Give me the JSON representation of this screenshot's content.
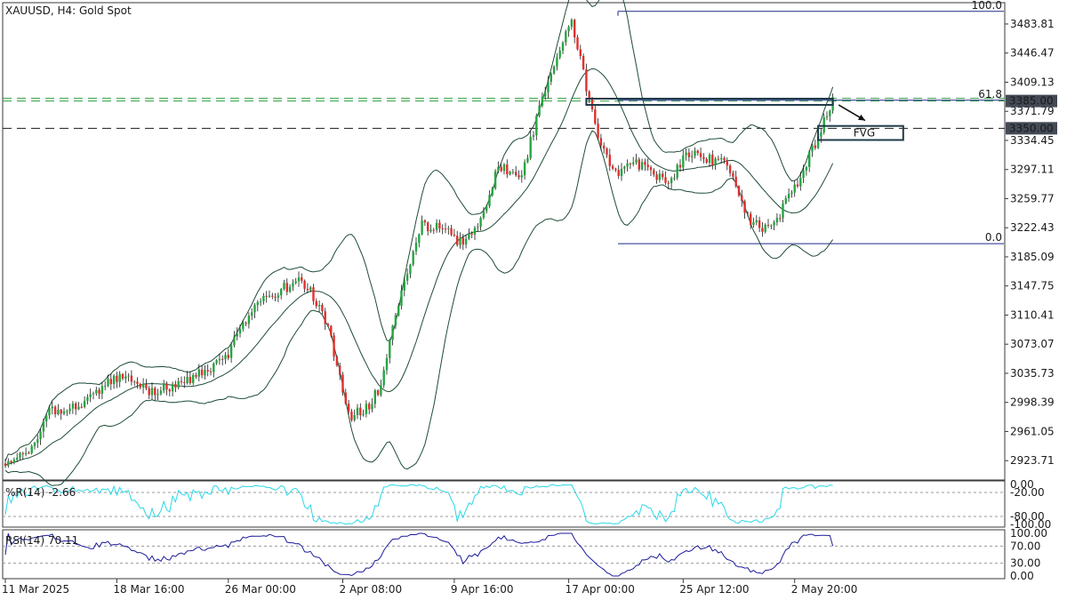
{
  "header": {
    "symbol_label": "XAUUSD, H4:  Gold Spot"
  },
  "colors": {
    "bull": "#26a541",
    "bear": "#e0302e",
    "wick": "#1a1a1a",
    "band": "#1f4d36",
    "fib": "#1f2a8a",
    "williams": "#28d8e8",
    "rsi": "#1b1b9a",
    "level_dash": "#1a1a1a",
    "green_dash": "#2e9e3e",
    "price_box_bg": "#444a55",
    "price_box_text": "#ffffff"
  },
  "chart_data": [
    {
      "type": "candlestick",
      "panel": "main",
      "ylim": [
        2900,
        3510
      ],
      "y_ticks": [
        3483.81,
        3446.47,
        3409.13,
        3371.79,
        3334.45,
        3297.11,
        3259.77,
        3222.43,
        3185.09,
        3147.75,
        3110.41,
        3073.07,
        3035.73,
        2998.39,
        2961.05,
        2923.71
      ],
      "x_labels": [
        "11 Mar 2025",
        "18 Mar 16:00",
        "26 Mar 00:00",
        "2 Apr 08:00",
        "9 Apr 16:00",
        "17 Apr 00:00",
        "25 Apr 12:00",
        "2 May 20:00"
      ],
      "price_anchors": [
        [
          0,
          2920
        ],
        [
          8,
          2935
        ],
        [
          15,
          2985
        ],
        [
          25,
          2995
        ],
        [
          40,
          3035
        ],
        [
          50,
          3012
        ],
        [
          62,
          3025
        ],
        [
          75,
          3055
        ],
        [
          85,
          3125
        ],
        [
          95,
          3145
        ],
        [
          100,
          3155
        ],
        [
          104,
          3140
        ],
        [
          110,
          3095
        ],
        [
          117,
          2980
        ],
        [
          123,
          2990
        ],
        [
          128,
          3020
        ],
        [
          133,
          3110
        ],
        [
          142,
          3225
        ],
        [
          150,
          3220
        ],
        [
          156,
          3200
        ],
        [
          162,
          3230
        ],
        [
          168,
          3300
        ],
        [
          176,
          3290
        ],
        [
          182,
          3375
        ],
        [
          188,
          3440
        ],
        [
          193,
          3490
        ],
        [
          197,
          3420
        ],
        [
          202,
          3340
        ],
        [
          208,
          3290
        ],
        [
          214,
          3310
        ],
        [
          220,
          3290
        ],
        [
          226,
          3280
        ],
        [
          232,
          3320
        ],
        [
          240,
          3310
        ],
        [
          246,
          3305
        ],
        [
          252,
          3240
        ],
        [
          258,
          3218
        ],
        [
          264,
          3240
        ],
        [
          270,
          3280
        ],
        [
          276,
          3330
        ],
        [
          282,
          3385
        ]
      ],
      "levels": [
        {
          "value": 3385.0,
          "label": "3385.00",
          "style": "dash-green"
        },
        {
          "value": 3350.0,
          "label": "3350.00",
          "style": "dash-dark"
        }
      ],
      "fibonacci": [
        {
          "value": 3500,
          "label": "100.0"
        },
        {
          "value": 3386,
          "label": "61.8"
        },
        {
          "value": 3202,
          "label": "0.0"
        }
      ],
      "annotations": [
        {
          "type": "box",
          "label": "",
          "from_bar": 198,
          "to_bar": 282,
          "y_top": 3388,
          "y_bottom": 3380
        },
        {
          "type": "box",
          "label": "FVG",
          "from_bar": 277,
          "to_bar": 306,
          "y_top": 3353,
          "y_bottom": 3335
        },
        {
          "type": "arrow",
          "from_bar": 284,
          "from_y": 3380,
          "to_bar": 293,
          "to_y": 3360
        }
      ]
    },
    {
      "type": "line",
      "panel": "williams",
      "label": "%R(14) -2.66",
      "ylim": [
        -100,
        0
      ],
      "y_ticks_text": [
        "0.00",
        "-20.00",
        "-80.00",
        "-100.00"
      ],
      "guides": [
        -20,
        -80
      ]
    },
    {
      "type": "line",
      "panel": "rsi",
      "label": "RSI(14) 70.11",
      "ylim": [
        0,
        100
      ],
      "y_ticks": [
        "100.00",
        "70.00",
        "30.00",
        "0.00"
      ],
      "guides": [
        70,
        30
      ]
    }
  ]
}
